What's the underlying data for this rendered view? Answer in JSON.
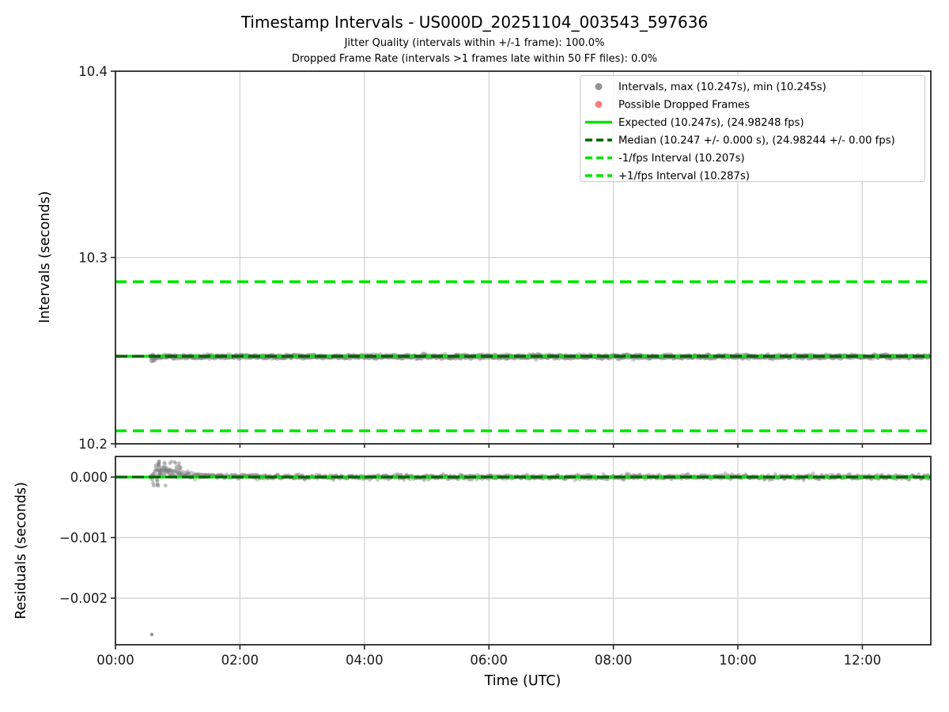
{
  "chart_data": {
    "type": "scatter",
    "title": "Timestamp Intervals - US000D_20251104_003543_597636",
    "subtitles": [
      "Jitter Quality (intervals within +/-1 frame): 100.0%",
      "Dropped Frame Rate (intervals >1 frames late within 50 FF files): 0.0%"
    ],
    "colors": {
      "lime": "#00e400",
      "darkgreen": "#006400",
      "scatter": "#808080",
      "dropped": "#ee6b6b",
      "grid": "#d3d3d3",
      "spine": "#262626",
      "tick_text": "#1a1a1a",
      "legend_border": "#cccccc",
      "legend_bg": "rgba(255,255,255,0.8)"
    },
    "x_axis": {
      "label": "Time (UTC)",
      "xlim_hours": [
        0,
        13.1
      ],
      "ticks": [
        {
          "hour": 0,
          "label": "00:00"
        },
        {
          "hour": 2,
          "label": "02:00"
        },
        {
          "hour": 4,
          "label": "04:00"
        },
        {
          "hour": 6,
          "label": "06:00"
        },
        {
          "hour": 8,
          "label": "08:00"
        },
        {
          "hour": 10,
          "label": "10:00"
        },
        {
          "hour": 12,
          "label": "12:00"
        }
      ]
    },
    "top_plot": {
      "ylabel": "Intervals (seconds)",
      "ylim": [
        10.2,
        10.4
      ],
      "yticks": [
        {
          "value": 10.2,
          "label": "10.2"
        },
        {
          "value": 10.3,
          "label": "10.3"
        },
        {
          "value": 10.4,
          "label": "10.4"
        }
      ],
      "grid": true,
      "reference_lines": [
        {
          "name": "expected",
          "value": 10.247,
          "style": "solid",
          "color_key": "lime"
        },
        {
          "name": "minus-1fps",
          "value": 10.207,
          "style": "dashed",
          "color_key": "lime"
        },
        {
          "name": "plus-1fps",
          "value": 10.287,
          "style": "dashed",
          "color_key": "lime"
        },
        {
          "name": "median",
          "value": 10.247,
          "style": "dashed",
          "color_key": "darkgreen"
        }
      ],
      "series": {
        "name": "Intervals",
        "start_hour": 0.56,
        "end_hour": 13.08,
        "center": 10.2468,
        "jitter": 0.00045,
        "max": 10.247,
        "min": 10.245,
        "low_points": [
          {
            "hour": 0.59,
            "value": 10.2447
          },
          {
            "hour": 0.62,
            "value": 10.2452
          }
        ]
      }
    },
    "legend": {
      "entries": [
        {
          "marker": "dot",
          "color_key": "scatter",
          "label": "Intervals, max (10.247s), min (10.245s)"
        },
        {
          "marker": "dot",
          "color_key": "dropped",
          "label": "Possible Dropped Frames"
        },
        {
          "marker": "solid",
          "color_key": "lime",
          "label": "Expected (10.247s), (24.98248 fps)"
        },
        {
          "marker": "dashed",
          "color_key": "darkgreen",
          "label": "Median (10.247 +/- 0.000 s), (24.98244 +/- 0.00 fps)"
        },
        {
          "marker": "dashed",
          "color_key": "lime",
          "label": "-1/fps Interval (10.207s)"
        },
        {
          "marker": "dashed",
          "color_key": "lime",
          "label": "+1/fps Interval (10.287s)"
        }
      ]
    },
    "bottom_plot": {
      "ylabel": "Residuals (seconds)",
      "ylim": [
        -0.00277,
        0.00034
      ],
      "yticks": [
        {
          "value": 0,
          "label": "0.000"
        },
        {
          "value": -0.001,
          "label": "−0.001"
        },
        {
          "value": -0.002,
          "label": "−0.002"
        }
      ],
      "grid": true,
      "reference_lines": [
        {
          "name": "expected",
          "value": 0,
          "style": "solid",
          "color_key": "lime"
        },
        {
          "name": "median",
          "value": 0,
          "style": "dashed",
          "color_key": "darkgreen"
        }
      ],
      "series": {
        "start_hour": 0.56,
        "end_hour": 13.08,
        "center": 0,
        "jitter": 1.8e-05,
        "startup_bump": {
          "from_hour": 0.6,
          "to_hour": 3.8,
          "peak": 0.00026,
          "decay_hours": 0.55
        },
        "outlier": {
          "hour": 0.585,
          "value": -0.0026
        }
      }
    }
  }
}
